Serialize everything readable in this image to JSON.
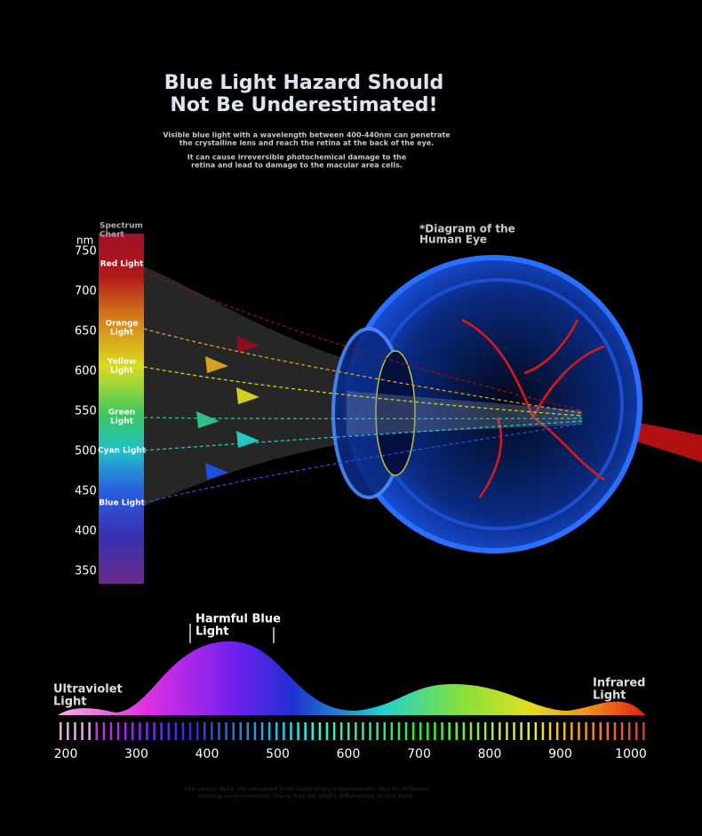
{
  "header": {
    "title": [
      "Blue Light Hazard Should",
      "Not Be Underestimated!"
    ],
    "description": [
      [
        "Visible blue light with a wavelength between 400-440nm can penetrate",
        "the crystalline lens and reach the retina at the back of the eye."
      ],
      [
        "It can cause irreversible photochemical damage to the",
        "retina and lead to damage to the macular area cells."
      ]
    ]
  },
  "spectrum": {
    "title": [
      "Spectrum",
      "Chart"
    ],
    "unit": "nm",
    "ticks": [
      750,
      700,
      650,
      600,
      550,
      500,
      450,
      400,
      350
    ],
    "lights": [
      {
        "label": [
          "Red Light"
        ]
      },
      {
        "label": [
          "Orange",
          "Light"
        ]
      },
      {
        "label": [
          "Yellow",
          "Light"
        ]
      },
      {
        "label": [
          "Green",
          "Light"
        ]
      },
      {
        "label": [
          "Cyan Light"
        ]
      },
      {
        "label": [
          "Blue Light"
        ]
      }
    ]
  },
  "eye": {
    "caption": [
      "*Diagram of the",
      "Human Eye"
    ]
  },
  "wavelength": {
    "highlight": [
      "Harmful Blue",
      "Light"
    ],
    "left": [
      "Ultraviolet",
      "Light"
    ],
    "right": [
      "Infrared",
      "Light"
    ],
    "ticks": [
      200,
      300,
      400,
      500,
      600,
      700,
      800,
      900,
      1000
    ]
  },
  "footnote": [
    "The above data are obtained from laboratory experiments. Due to different",
    "testing environments, there may be slight differences in the data."
  ]
}
